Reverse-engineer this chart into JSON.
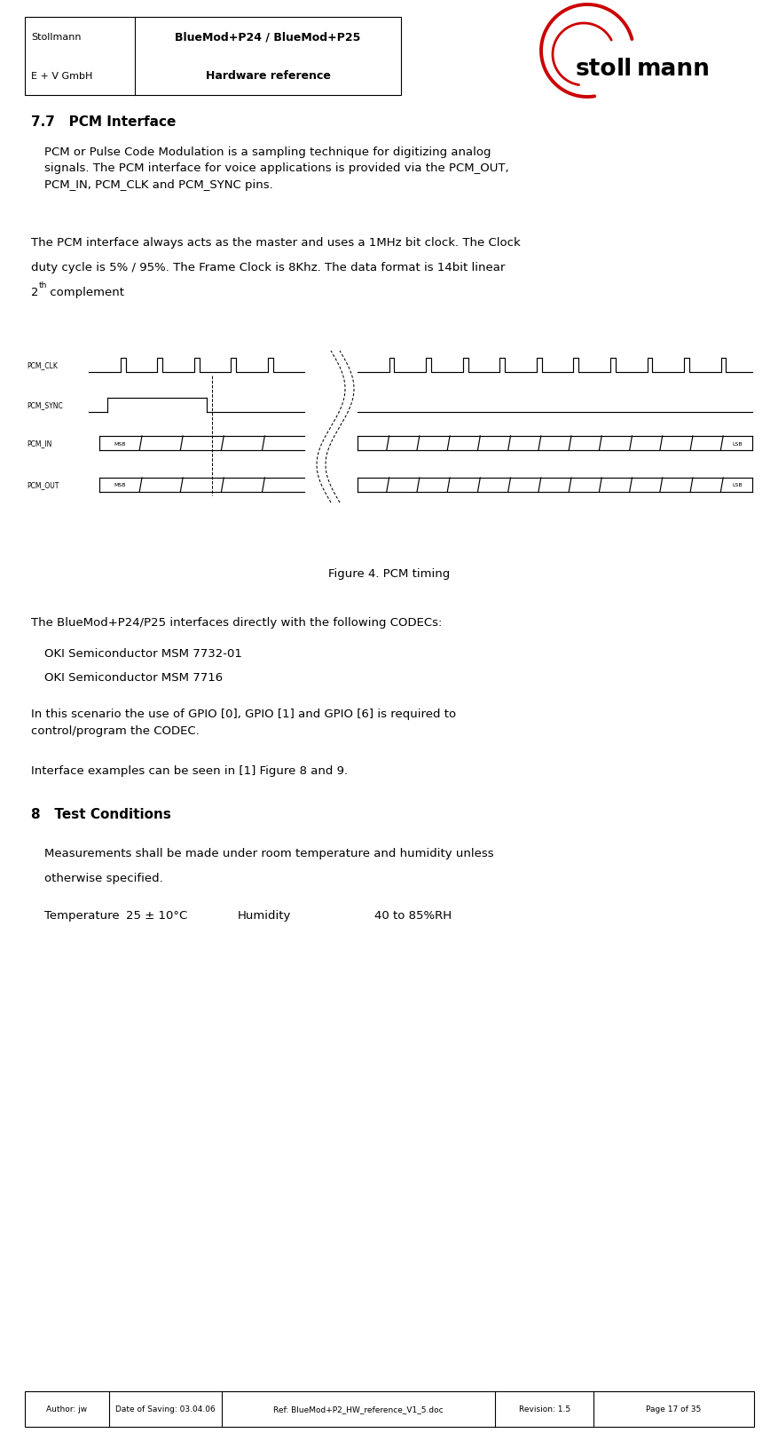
{
  "page_width": 8.77,
  "page_height": 16.15,
  "bg_color": "#ffffff",
  "header": {
    "left_col1": "Stollmann",
    "left_col2": "E + V GmbH",
    "right_col1": "BlueMod+P24 / BlueMod+P25",
    "right_col2": "Hardware reference"
  },
  "footer": {
    "col1": "Author: jw",
    "col2": "Date of Saving: 03.04.06",
    "col3": "Ref: BlueMod+P2_HW_reference_V1_5.doc",
    "col4": "Revision: 1.5",
    "col5": "Page 17 of 35"
  },
  "section_title": "7.7   PCM Interface",
  "para1": "PCM or Pulse Code Modulation is a sampling technique for digitizing analog\nsignals. The PCM interface for voice applications is provided via the PCM_OUT,\nPCM_IN, PCM_CLK and PCM_SYNC pins.",
  "para2_line1": "The PCM interface always acts as the master and uses a 1MHz bit clock. The Clock",
  "para2_line2": "duty cycle is 5% / 95%. The Frame Clock is 8Khz. The data format is 14bit linear",
  "para2_line3_normal": "2",
  "para2_line3_super": "th",
  "para2_line3_rest": " complement",
  "figure_caption": "Figure 4. PCM timing",
  "para3": "The BlueMod+P24/P25 interfaces directly with the following CODECs:",
  "codec1": "OKI Semiconductor MSM 7732-01",
  "codec2": "OKI Semiconductor MSM 7716",
  "para4": "In this scenario the use of GPIO [0], GPIO [1] and GPIO [6] is required to\ncontrol/program the CODEC.",
  "para5": "Interface examples can be seen in [1] Figure 8 and 9.",
  "section2_title": "8   Test Conditions",
  "para6_1": "Measurements shall be made under room temperature and humidity unless",
  "para6_2": "otherwise specified.",
  "temp_label": "Temperature",
  "temp_value": "25 ± 10°C",
  "humidity_label": "Humidity",
  "humidity_value": "40 to 85%RH"
}
